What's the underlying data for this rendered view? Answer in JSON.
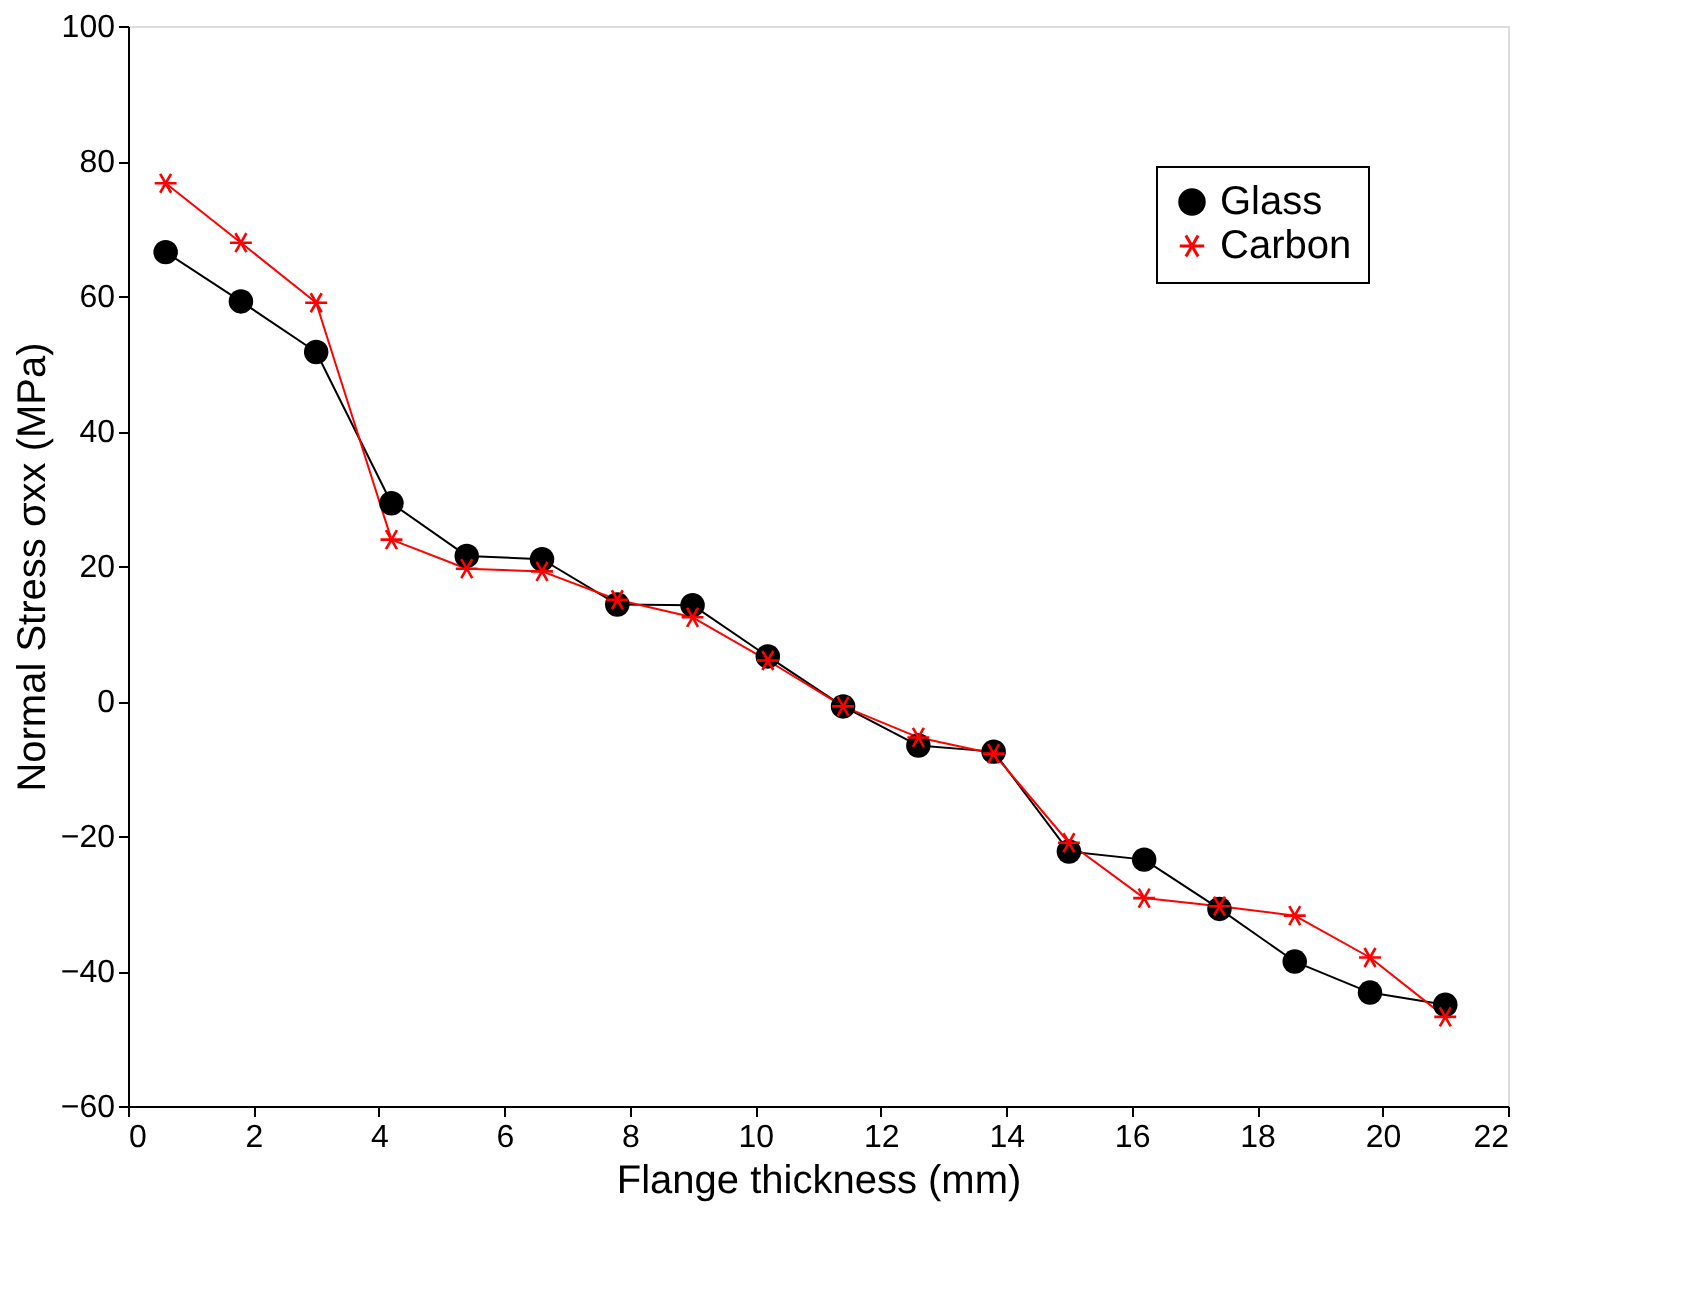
{
  "chart_data": {
    "type": "line",
    "xlabel": "Flange thickness (mm)",
    "ylabel": "Normal Stress σxx (MPa)",
    "x": [
      0.6,
      1.8,
      3.0,
      4.2,
      5.4,
      6.6,
      7.8,
      9.0,
      10.2,
      11.4,
      12.6,
      13.8,
      15.0,
      16.2,
      17.4,
      18.6,
      19.8,
      21.0
    ],
    "series": [
      {
        "name": "Glass",
        "color": "#000000",
        "marker": "circle",
        "values": [
          66.5,
          59.2,
          51.7,
          29.3,
          21.5,
          21.0,
          14.3,
          14.2,
          6.6,
          -0.8,
          -6.6,
          -7.5,
          -22.3,
          -23.5,
          -30.8,
          -38.6,
          -43.2,
          -45.0
        ]
      },
      {
        "name": "Carbon",
        "color": "#ff0000",
        "marker": "cross",
        "values": [
          76.7,
          67.9,
          59.0,
          23.9,
          19.6,
          19.2,
          15.0,
          12.4,
          6.0,
          -0.8,
          -5.4,
          -7.8,
          -21.0,
          -29.2,
          -30.4,
          -31.8,
          -38.0,
          -46.8
        ]
      }
    ],
    "xlim": [
      0,
      22
    ],
    "xticks": [
      0,
      2,
      4,
      6,
      8,
      10,
      12,
      14,
      16,
      18,
      20,
      22
    ],
    "ylim": [
      -60,
      100
    ],
    "yticks": [
      -60,
      -40,
      -20,
      0,
      20,
      40,
      60,
      80,
      100
    ],
    "grid": false,
    "legend": "top right",
    "line_style": "solid"
  }
}
